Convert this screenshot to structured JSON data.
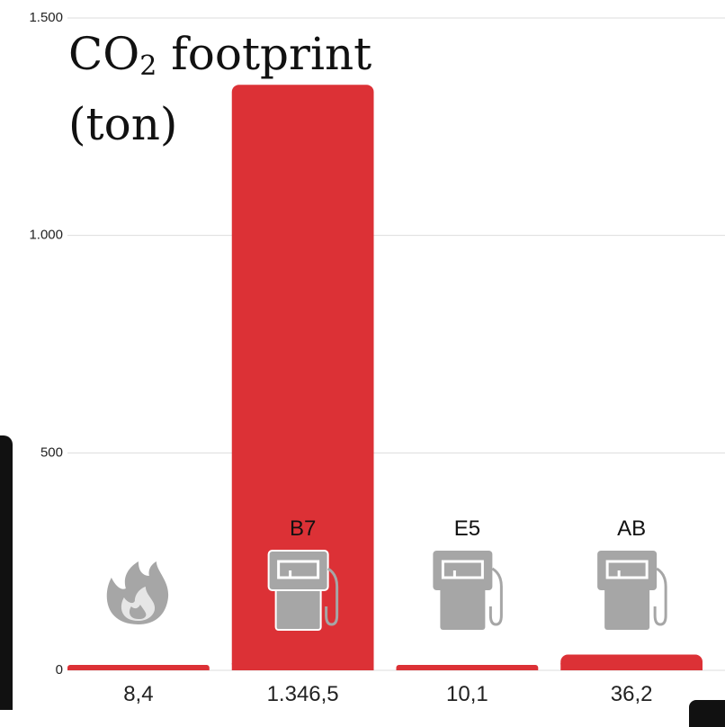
{
  "chart_data": {
    "type": "bar",
    "title": "CO",
    "title_subscript": "2",
    "title_rest": " footprint",
    "title_unit": "(ton)",
    "categories": [
      "fire",
      "B7",
      "E5",
      "AB"
    ],
    "category_labels": [
      "",
      "B7",
      "E5",
      "AB"
    ],
    "category_icons": [
      "fire-icon",
      "fuel-pump-icon",
      "fuel-pump-icon",
      "fuel-pump-icon"
    ],
    "values": [
      8.4,
      1346.5,
      10.1,
      36.2
    ],
    "value_labels": [
      "8,4",
      "1.346,5",
      "10,1",
      "36,2"
    ],
    "ylim": [
      0,
      1500
    ],
    "yticks": [
      0,
      500,
      1000,
      1500
    ],
    "ytick_labels": [
      "0",
      "500",
      "1.000",
      "1.500"
    ],
    "grid": true,
    "legend": "none",
    "colors": {
      "bar": "#dc3136",
      "icon": "#a6a6a6",
      "grid": "#dddddd"
    }
  }
}
